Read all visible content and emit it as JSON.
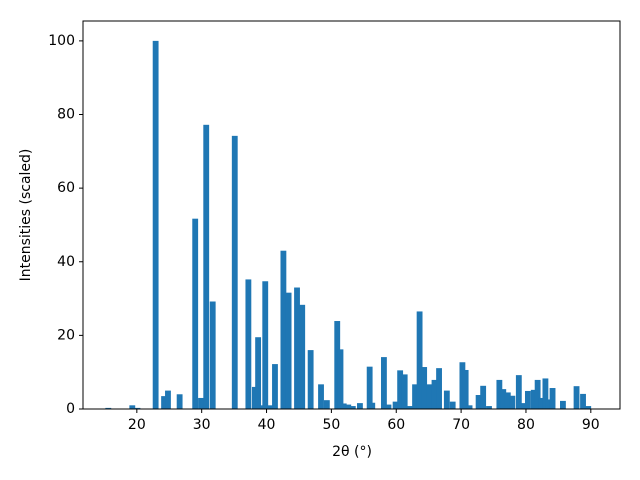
{
  "chart_data": {
    "type": "bar",
    "xlabel": "2θ (°)",
    "ylabel": "Intensities (scaled)",
    "color": "#1f77b4",
    "x": [
      15.6,
      19.3,
      20.1,
      22.9,
      24.2,
      24.8,
      26.6,
      29.0,
      29.9,
      30.7,
      31.7,
      35.1,
      37.2,
      38.2,
      38.7,
      39.4,
      39.8,
      40.6,
      41.3,
      42.6,
      43.4,
      44.7,
      45.5,
      46.8,
      48.4,
      49.3,
      50.9,
      51.4,
      51.9,
      52.6,
      53.3,
      54.4,
      55.9,
      56.3,
      58.1,
      58.8,
      59.9,
      60.6,
      61.3,
      62.1,
      62.9,
      63.6,
      64.3,
      65.1,
      65.9,
      66.6,
      67.8,
      68.7,
      70.2,
      70.7,
      71.3,
      72.7,
      73.4,
      74.3,
      75.9,
      76.5,
      77.2,
      77.9,
      78.9,
      79.7,
      80.3,
      81.2,
      81.8,
      82.4,
      83.0,
      83.5,
      84.1,
      85.7,
      87.8,
      88.8,
      89.6
    ],
    "values": [
      0.3,
      1.0,
      0.3,
      100,
      3.5,
      5.0,
      4.0,
      51.7,
      3.0,
      77.2,
      29.2,
      74.2,
      35.2,
      6.0,
      19.5,
      1.0,
      34.7,
      1.0,
      12.2,
      43.0,
      31.6,
      33.0,
      28.3,
      16.0,
      6.7,
      2.4,
      23.9,
      16.2,
      1.5,
      1.2,
      0.8,
      1.6,
      11.5,
      1.7,
      14.1,
      1.2,
      2.0,
      10.5,
      9.4,
      0.8,
      6.7,
      26.5,
      11.4,
      6.7,
      7.9,
      11.1,
      5.0,
      2.0,
      12.7,
      10.6,
      1.0,
      3.8,
      6.3,
      0.8,
      7.9,
      5.4,
      4.5,
      3.6,
      9.2,
      1.6,
      4.9,
      5.2,
      7.9,
      3.0,
      8.3,
      2.6,
      5.7,
      2.2,
      6.2,
      4.1,
      0.8
    ],
    "xlim": [
      11.7,
      94.5
    ],
    "ylim": [
      0,
      105.4
    ],
    "xticks": [
      20,
      30,
      40,
      50,
      60,
      70,
      80,
      90
    ],
    "yticks": [
      0,
      20,
      40,
      60,
      80,
      100
    ]
  }
}
